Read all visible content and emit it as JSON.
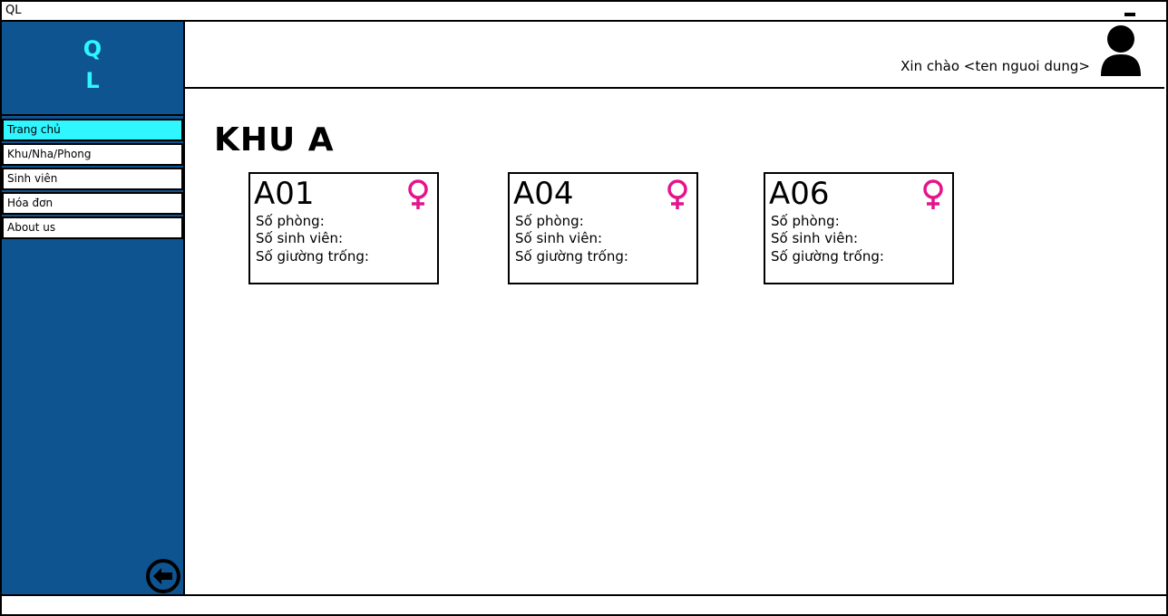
{
  "window": {
    "title": "QL"
  },
  "sidebar": {
    "logo_line1": "Q",
    "logo_line2": "L",
    "items": [
      {
        "label": "Trang chủ"
      },
      {
        "label": "Khu/Nha/Phong"
      },
      {
        "label": "Sinh viên"
      },
      {
        "label": "Hóa đơn"
      },
      {
        "label": "About us"
      }
    ],
    "active_index": 0
  },
  "header": {
    "greeting": "Xin chào <ten nguoi dung>"
  },
  "main": {
    "title": "KHU A",
    "cards": [
      {
        "code": "A01",
        "rooms_label": "Số phòng:",
        "students_label": "Số sinh viên:",
        "empty_beds_label": "Số giường trống:"
      },
      {
        "code": "A04",
        "rooms_label": "Số phòng:",
        "students_label": "Số sinh viên:",
        "empty_beds_label": "Số giường trống:"
      },
      {
        "code": "A06",
        "rooms_label": "Số phòng:",
        "students_label": "Số sinh viên:",
        "empty_beds_label": "Số giường trống:"
      }
    ]
  },
  "icons": {
    "gender": "female-icon",
    "avatar": "user-icon",
    "back": "back-arrow-icon",
    "minimize": "minimize-icon"
  },
  "colors": {
    "sidebar_bg": "#0d5491",
    "accent_cyan": "#2ff6ff",
    "female_pink": "#e4148c"
  }
}
